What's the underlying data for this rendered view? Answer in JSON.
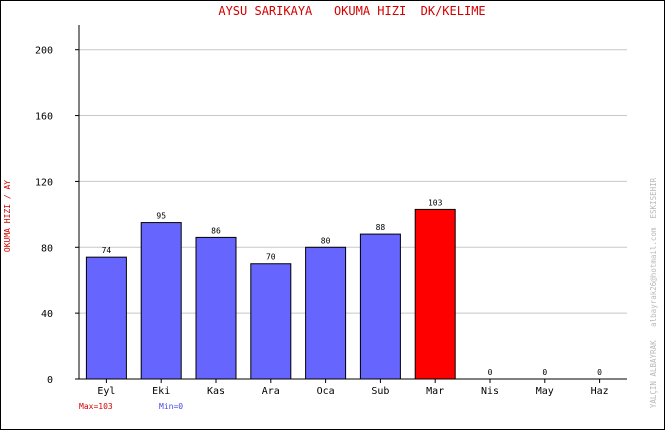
{
  "colors": {
    "bar": "#6666ff",
    "max_bar": "#ff0000",
    "title": "#d40000",
    "min_label": "#4444ee",
    "grid": "#c8c8c8",
    "credit": "#b8b8b8"
  },
  "chart_data": {
    "type": "bar",
    "title": "AYSU SARIKAYA   OKUMA HIZI  DK/KELIME",
    "xlabel": "",
    "ylabel": "OKUMA HIZI / AY",
    "ylim": [
      0,
      215
    ],
    "yticks": [
      0,
      40,
      80,
      120,
      160,
      200
    ],
    "grid": true,
    "categories": [
      "Eyl",
      "Eki",
      "Kas",
      "Ara",
      "Oca",
      "Sub",
      "Mar",
      "Nis",
      "May",
      "Haz"
    ],
    "values": [
      74,
      95,
      86,
      70,
      80,
      88,
      103,
      0,
      0,
      0
    ],
    "highlight_index": 6,
    "max_label": "Max=103",
    "min_label": "Min=0",
    "credit": "YALÇIN ALBAYRAK   albayrak26@hotmail.com  ESKISEHIR"
  }
}
